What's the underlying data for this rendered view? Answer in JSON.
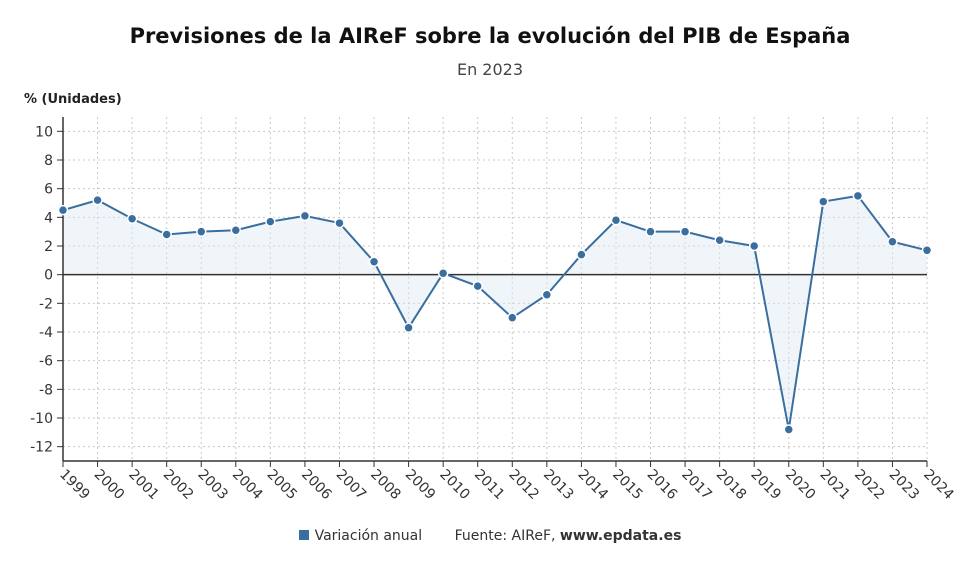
{
  "chart_data": {
    "type": "line",
    "title": "Previsiones de la AIReF sobre la evolución del PIB de España",
    "subtitle": "En 2023",
    "ylabel": "% (Unidades)",
    "xlabel": "",
    "ylim": [
      -13,
      11
    ],
    "yticks": [
      10,
      8,
      6,
      4,
      2,
      0,
      -2,
      -4,
      -6,
      -8,
      -10,
      -12
    ],
    "grid": true,
    "legend_position": "bottom",
    "categories": [
      "1999",
      "2000",
      "2001",
      "2002",
      "2003",
      "2004",
      "2005",
      "2006",
      "2007",
      "2008",
      "2009",
      "2010",
      "2011",
      "2012",
      "2013",
      "2014",
      "2015",
      "2016",
      "2017",
      "2018",
      "2019",
      "2020",
      "2021",
      "2022",
      "2023",
      "2024"
    ],
    "series": [
      {
        "name": "Variación anual",
        "color": "#3a6e9f",
        "values": [
          4.5,
          5.2,
          3.9,
          2.8,
          3.0,
          3.1,
          3.7,
          4.1,
          3.6,
          0.9,
          -3.7,
          0.1,
          -0.8,
          -3.0,
          -1.4,
          1.4,
          3.8,
          3.0,
          3.0,
          2.4,
          2.0,
          -10.8,
          5.1,
          5.5,
          2.3,
          1.7
        ]
      }
    ]
  },
  "footer": {
    "legend_label": "Variación anual",
    "source_prefix": "Fuente: AIReF, ",
    "source_site": "www.epdata.es"
  }
}
